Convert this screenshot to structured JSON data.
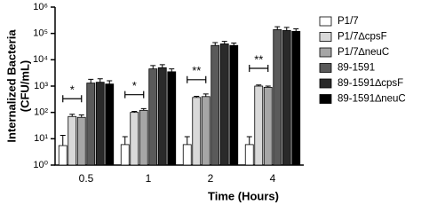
{
  "chart_data": {
    "type": "bar",
    "xlabel": "Time (Hours)",
    "ylabel": [
      "Internalized Bacteria",
      "(CFU/mL)"
    ],
    "categories": [
      "0.5",
      "1",
      "2",
      "4"
    ],
    "log_scale": true,
    "ylim": [
      1,
      1000000
    ],
    "yticks": [
      {
        "value": 1,
        "label": "10⁰"
      },
      {
        "value": 10,
        "label": "10¹"
      },
      {
        "value": 100,
        "label": "10²"
      },
      {
        "value": 1000,
        "label": "10³"
      },
      {
        "value": 10000,
        "label": "10⁴"
      },
      {
        "value": 100000,
        "label": "10⁵"
      },
      {
        "value": 1000000,
        "label": "10⁶"
      }
    ],
    "annotations": [
      "*",
      "*",
      "**",
      "**"
    ],
    "series": [
      {
        "name": "P1/7",
        "color": "#ffffff",
        "values": [
          5.5,
          6,
          6,
          6
        ],
        "errors": [
          8,
          6,
          6,
          6
        ]
      },
      {
        "name": "P1/7∆cpsF",
        "color": "#d9d9d9",
        "values": [
          70,
          100,
          370,
          1000
        ],
        "errors": [
          15,
          10,
          40,
          100
        ]
      },
      {
        "name": "P1/7∆neuC",
        "color": "#a6a6a6",
        "values": [
          65,
          120,
          400,
          900
        ],
        "errors": [
          15,
          20,
          100,
          100
        ]
      },
      {
        "name": "89-1591",
        "color": "#5a5a5a",
        "values": [
          1300,
          4500,
          35000,
          140000
        ],
        "errors": [
          500,
          1500,
          10000,
          40000
        ]
      },
      {
        "name": "89-1591∆cpsF",
        "color": "#2a2a2a",
        "values": [
          1400,
          5000,
          40000,
          130000
        ],
        "errors": [
          500,
          1500,
          10000,
          40000
        ]
      },
      {
        "name": "89-1591∆neuC",
        "color": "#000000",
        "values": [
          1200,
          3500,
          35000,
          120000
        ],
        "errors": [
          400,
          1000,
          8000,
          30000
        ]
      }
    ]
  }
}
